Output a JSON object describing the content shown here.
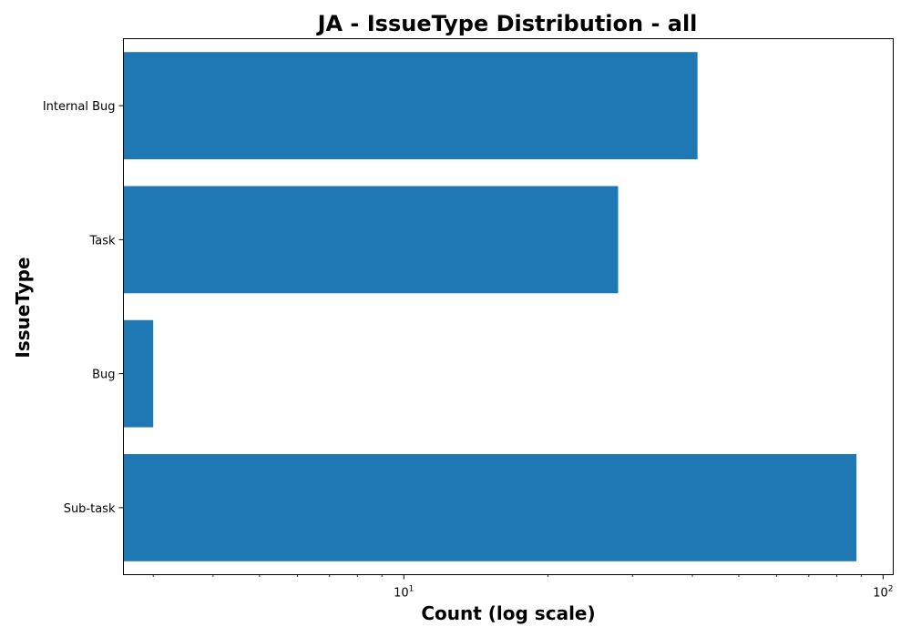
{
  "chart_data": {
    "type": "bar",
    "orientation": "horizontal",
    "title": "JA - IssueType Distribution - all",
    "xlabel": "Count (log scale)",
    "ylabel": "IssueType",
    "x_scale": "log",
    "xlim": [
      2.6,
      105
    ],
    "x_major_ticks": [
      10,
      100
    ],
    "x_major_tick_labels": [
      {
        "base": "10",
        "exponent": "1"
      },
      {
        "base": "10",
        "exponent": "2"
      }
    ],
    "x_minor_ticks": [
      3,
      4,
      5,
      6,
      7,
      8,
      9,
      20,
      30,
      40,
      50,
      60,
      70,
      80,
      90
    ],
    "categories": [
      "Internal Bug",
      "Task",
      "Bug",
      "Sub-task"
    ],
    "values": [
      41,
      28,
      3,
      88
    ],
    "bar_color": "#1f77b4",
    "grid": false,
    "legend": "none"
  }
}
